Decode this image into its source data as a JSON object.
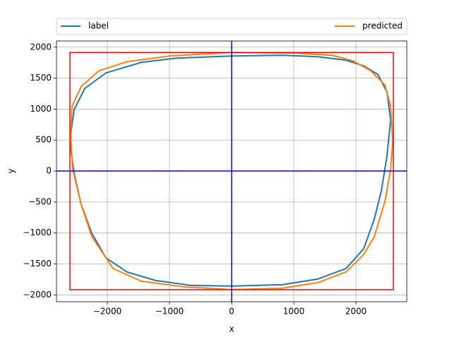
{
  "chart_data": {
    "type": "line",
    "xlabel": "x",
    "ylabel": "y",
    "xlim": [
      -2818,
      2818
    ],
    "ylim": [
      -2110,
      2100
    ],
    "xticks": [
      {
        "value": -2000,
        "label": "−2000"
      },
      {
        "value": -1000,
        "label": "−1000"
      },
      0,
      1000,
      2000
    ],
    "yticks": [
      {
        "value": -2000,
        "label": "−2000"
      },
      {
        "value": -1500,
        "label": "−1500"
      },
      {
        "value": -1000,
        "label": "−1000"
      },
      {
        "value": -500,
        "label": "−500"
      },
      0,
      500,
      1000,
      1500,
      2000
    ],
    "grid": true,
    "legend": "top",
    "series": [
      {
        "name": "label",
        "color": "#1f77b4",
        "x": [
          2557,
          2500,
          2352,
          2125,
          1841,
          1386,
          818,
          0,
          -886,
          -1455,
          -2023,
          -2364,
          -2534,
          -2591,
          -2591,
          -2534,
          -2420,
          -2250,
          -2023,
          -1682,
          -1227,
          -659,
          0,
          818,
          1386,
          1841,
          2125,
          2295,
          2409,
          2500,
          2557
        ],
        "values": [
          820,
          1276,
          1561,
          1698,
          1789,
          1846,
          1869,
          1858,
          1823,
          1755,
          1584,
          1333,
          991,
          593,
          365,
          -34,
          -547,
          -1003,
          -1402,
          -1630,
          -1766,
          -1846,
          -1858,
          -1835,
          -1744,
          -1573,
          -1254,
          -775,
          -319,
          251,
          820
        ]
      },
      {
        "name": "predicted",
        "color": "#ff7f0e",
        "x": [
          0,
          1045,
          1614,
          1955,
          2239,
          2466,
          2557,
          2591,
          2557,
          2466,
          2295,
          2125,
          1841,
          1386,
          818,
          0,
          -773,
          -1455,
          -1909,
          -2250,
          -2420,
          -2557,
          -2591,
          -2568,
          -2420,
          -2136,
          -1682,
          -1000,
          0
        ],
        "values": [
          1915,
          1903,
          1869,
          1778,
          1618,
          1390,
          1048,
          479,
          23,
          -490,
          -1060,
          -1345,
          -1630,
          -1801,
          -1892,
          -1915,
          -1869,
          -1778,
          -1573,
          -1060,
          -547,
          23,
          593,
          1048,
          1367,
          1618,
          1766,
          1858,
          1915
        ]
      }
    ],
    "hlines": [
      {
        "value": 0,
        "color": "#0000ff"
      }
    ],
    "vlines": [
      {
        "value": 0,
        "color": "#0000ff"
      }
    ],
    "rect": {
      "x": [
        -2602,
        2602
      ],
      "y": [
        -1915,
        1915
      ],
      "color": "#ff0000"
    }
  }
}
